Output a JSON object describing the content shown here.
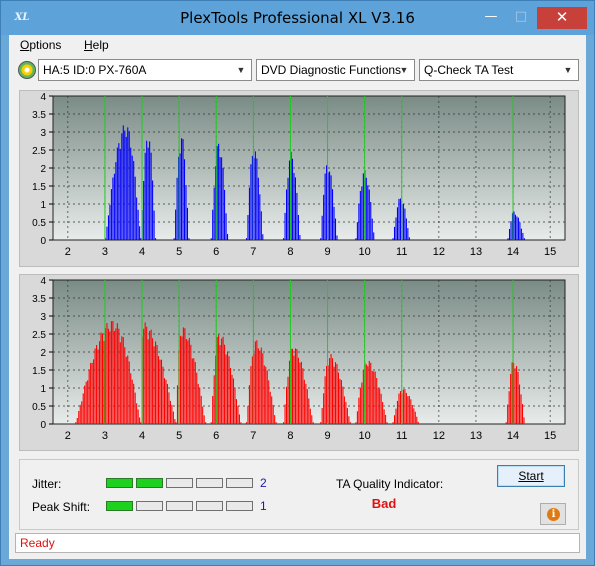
{
  "window": {
    "title": "PlexTools Professional XL V3.16",
    "app_icon_text": "XL",
    "minimize": "—",
    "maximize": "□",
    "close": "✕"
  },
  "menu": [
    {
      "label": "Options"
    },
    {
      "label": "Help"
    }
  ],
  "toolbar": {
    "drive_icon": "disc-drive-icon",
    "drive": "HA:5 ID:0  PX-760A",
    "function": "DVD Diagnostic Functions",
    "test": "Q-Check TA Test"
  },
  "colors": {
    "top_fill": "#0000ff",
    "bottom_fill": "#ff0000",
    "marker": "#22cc22",
    "plot_bg_top": "#7a8b86",
    "plot_bg_bottom": "#e8ecea"
  },
  "chart_data": [
    {
      "type": "area",
      "title": "",
      "xlabel": "",
      "ylabel": "",
      "xlim": [
        1.6,
        15.4
      ],
      "ylim": [
        0,
        4
      ],
      "x_ticks": [
        2,
        3,
        4,
        5,
        6,
        7,
        8,
        9,
        10,
        11,
        12,
        13,
        14,
        15
      ],
      "y_ticks": [
        0,
        0.5,
        1,
        1.5,
        2,
        2.5,
        3,
        3.5,
        4
      ],
      "markers": [
        3,
        4,
        5,
        6,
        7,
        8,
        9,
        10,
        11,
        14
      ],
      "grid": true,
      "series": [
        {
          "color": "#0000ff",
          "peaks": [
            {
              "start": 3.0,
              "peak": 3.55,
              "end": 3.95,
              "height": 3.25
            },
            {
              "start": 3.95,
              "peak": 4.15,
              "end": 4.35,
              "height": 3.0
            },
            {
              "start": 4.85,
              "peak": 5.05,
              "end": 5.25,
              "height": 2.95
            },
            {
              "start": 5.85,
              "peak": 6.05,
              "end": 6.3,
              "height": 2.75
            },
            {
              "start": 6.8,
              "peak": 7.0,
              "end": 7.25,
              "height": 2.6
            },
            {
              "start": 7.8,
              "peak": 8.0,
              "end": 8.25,
              "height": 2.45
            },
            {
              "start": 8.8,
              "peak": 8.98,
              "end": 9.25,
              "height": 2.15
            },
            {
              "start": 9.75,
              "peak": 9.98,
              "end": 10.25,
              "height": 1.95
            },
            {
              "start": 10.75,
              "peak": 10.95,
              "end": 11.2,
              "height": 1.2
            },
            {
              "start": 13.85,
              "peak": 14.0,
              "end": 14.3,
              "height": 0.8
            }
          ]
        }
      ]
    },
    {
      "type": "area",
      "title": "",
      "xlabel": "",
      "ylabel": "",
      "xlim": [
        1.6,
        15.4
      ],
      "ylim": [
        0,
        4
      ],
      "x_ticks": [
        2,
        3,
        4,
        5,
        6,
        7,
        8,
        9,
        10,
        11,
        12,
        13,
        14,
        15
      ],
      "y_ticks": [
        0,
        0.5,
        1,
        1.5,
        2,
        2.5,
        3,
        3.5,
        4
      ],
      "markers": [
        3,
        4,
        5,
        6,
        7,
        8,
        9,
        10,
        11,
        14
      ],
      "grid": true,
      "series": [
        {
          "color": "#ff0000",
          "peaks": [
            {
              "start": 2.2,
              "peak": 3.2,
              "end": 3.95,
              "height": 2.9
            },
            {
              "start": 3.95,
              "peak": 4.0,
              "end": 4.9,
              "height": 2.85
            },
            {
              "start": 4.9,
              "peak": 5.05,
              "end": 5.7,
              "height": 2.75
            },
            {
              "start": 5.85,
              "peak": 6.05,
              "end": 6.65,
              "height": 2.55
            },
            {
              "start": 6.8,
              "peak": 7.05,
              "end": 7.6,
              "height": 2.35
            },
            {
              "start": 7.8,
              "peak": 8.05,
              "end": 8.6,
              "height": 2.2
            },
            {
              "start": 8.8,
              "peak": 9.05,
              "end": 9.6,
              "height": 1.95
            },
            {
              "start": 9.75,
              "peak": 10.05,
              "end": 10.6,
              "height": 1.8
            },
            {
              "start": 10.75,
              "peak": 11.0,
              "end": 11.45,
              "height": 1.0
            },
            {
              "start": 13.8,
              "peak": 14.0,
              "end": 14.3,
              "height": 1.8
            }
          ]
        }
      ]
    }
  ],
  "jitter": {
    "label": "Jitter:",
    "value": "2",
    "level": 2,
    "segments": 5
  },
  "peak_shift": {
    "label": "Peak Shift:",
    "value": "1",
    "level": 1,
    "segments": 5
  },
  "ta_quality": {
    "label": "TA Quality Indicator:",
    "value": "Bad"
  },
  "start_button": "Start",
  "info_icon": "info-icon",
  "status": "Ready"
}
